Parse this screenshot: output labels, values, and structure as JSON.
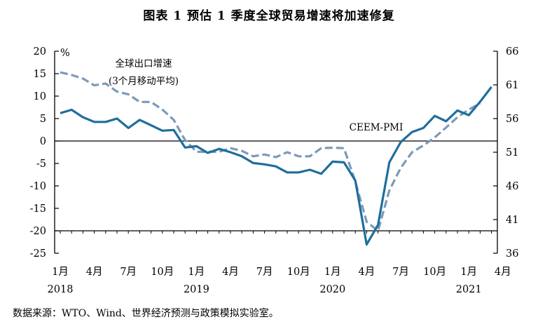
{
  "figure": {
    "title": "图表 1    预估 1 季度全球贸易增速将加速修复",
    "source": "数据来源：WTO、Wind、世界经济预测与政策模拟实验室。"
  },
  "chart_data": {
    "type": "line",
    "title": "预估 1 季度全球贸易增速将加速修复",
    "y_left": {
      "unit": "%",
      "range": [
        -25,
        20
      ],
      "ticks": [
        20,
        15,
        10,
        5,
        0,
        -5,
        -10,
        -15,
        -20,
        -25
      ]
    },
    "y_right": {
      "range": [
        36,
        66
      ],
      "ticks": [
        66,
        61,
        56,
        51,
        46,
        41,
        36
      ]
    },
    "x": {
      "month_labels": [
        "1月",
        "4月",
        "7月",
        "10月",
        "1月",
        "4月",
        "7月",
        "10月",
        "1月",
        "4月",
        "7月",
        "10月",
        "1月",
        "4月"
      ],
      "year_labels": [
        {
          "month_index": 0,
          "text": "2018"
        },
        {
          "month_index": 12,
          "text": "2019"
        },
        {
          "month_index": 24,
          "text": "2020"
        },
        {
          "month_index": 36,
          "text": "2021"
        }
      ],
      "start": "2018-01",
      "end": "2021-04"
    },
    "series": [
      {
        "name": "全球出口增速(3个月移动平均)",
        "axis": "left",
        "color": "#7b9ab8",
        "style": "dashed",
        "label_line1": "全球出口增速",
        "label_line2": "(3个月移动平均)",
        "values": [
          15.3,
          14.7,
          13.9,
          12.4,
          12.8,
          11.0,
          10.4,
          8.7,
          8.7,
          7.0,
          4.7,
          0.2,
          -2.4,
          -2.4,
          -2.4,
          -1.6,
          -2.2,
          -3.4,
          -3.0,
          -3.6,
          -2.5,
          -3.4,
          -3.4,
          -1.6,
          -1.5,
          -1.6,
          -9.0,
          -18.0,
          -20.0,
          -11.0,
          -6.0,
          -2.5,
          -1.0,
          0.8,
          3.0,
          5.3,
          7.0,
          8.4
        ]
      },
      {
        "name": "CEEM-PMI",
        "axis": "right",
        "color": "#1f6e9c",
        "style": "solid",
        "label": "CEEM-PMI",
        "values": [
          56.8,
          57.3,
          56.2,
          55.5,
          55.5,
          56.0,
          54.6,
          55.8,
          55.0,
          54.2,
          54.3,
          51.7,
          51.9,
          50.9,
          51.5,
          51.0,
          50.4,
          49.4,
          49.2,
          48.9,
          48.0,
          48.0,
          48.4,
          47.8,
          49.6,
          49.5,
          46.8,
          37.3,
          40.2,
          49.5,
          52.5,
          54.0,
          54.6,
          56.4,
          55.6,
          57.2,
          56.5,
          58.5,
          60.7
        ]
      }
    ]
  }
}
